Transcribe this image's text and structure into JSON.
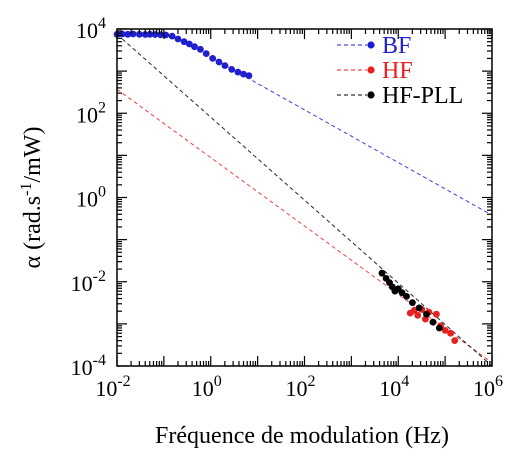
{
  "chart_data": {
    "type": "scatter",
    "title": "",
    "xlabel": "Fréquence de modulation (Hz)",
    "ylabel": "α (rad.s⁻¹/mW)",
    "x_scale": "log",
    "y_scale": "log",
    "xlim": [
      0.01,
      1000000
    ],
    "ylim": [
      0.0001,
      10000
    ],
    "x_ticks": [
      {
        "value": 0.01,
        "base": "10",
        "exp": "-2"
      },
      {
        "value": 1,
        "base": "10",
        "exp": "0"
      },
      {
        "value": 100,
        "base": "10",
        "exp": "2"
      },
      {
        "value": 10000,
        "base": "10",
        "exp": "4"
      },
      {
        "value": 1000000,
        "base": "10",
        "exp": "6"
      }
    ],
    "y_ticks": [
      {
        "value": 0.0001,
        "base": "10",
        "exp": "-4"
      },
      {
        "value": 0.01,
        "base": "10",
        "exp": "-2"
      },
      {
        "value": 1,
        "base": "10",
        "exp": "0"
      },
      {
        "value": 100,
        "base": "10",
        "exp": "2"
      },
      {
        "value": 10000,
        "base": "10",
        "exp": "4"
      }
    ],
    "grid": false,
    "legend_position": "top-right",
    "series": [
      {
        "name": "BF",
        "color": "#1f1fd0",
        "points": [
          [
            0.01,
            7500
          ],
          [
            0.013,
            7600
          ],
          [
            0.017,
            7500
          ],
          [
            0.022,
            7600
          ],
          [
            0.03,
            7500
          ],
          [
            0.04,
            7400
          ],
          [
            0.05,
            7500
          ],
          [
            0.065,
            7400
          ],
          [
            0.085,
            7300
          ],
          [
            0.11,
            7200
          ],
          [
            0.15,
            6800
          ],
          [
            0.2,
            5800
          ],
          [
            0.27,
            5000
          ],
          [
            0.35,
            4400
          ],
          [
            0.45,
            3800
          ],
          [
            0.6,
            3300
          ],
          [
            0.8,
            2600
          ],
          [
            1.1,
            2000
          ],
          [
            1.5,
            1650
          ],
          [
            2.0,
            1350
          ],
          [
            2.8,
            1100
          ],
          [
            3.8,
            950
          ],
          [
            5.0,
            850
          ],
          [
            6.5,
            780
          ]
        ],
        "fit_line": [
          [
            0.01,
            7600
          ],
          [
            0.15,
            7000
          ],
          [
            1000000,
            0.38
          ]
        ]
      },
      {
        "name": "HF",
        "color": "#e82020",
        "points": [
          [
            18000,
            0.0018
          ],
          [
            22000,
            0.0021
          ],
          [
            26000,
            0.0016
          ],
          [
            32000,
            0.0022
          ],
          [
            38000,
            0.0013
          ],
          [
            45000,
            0.0019
          ],
          [
            55000,
            0.0011
          ],
          [
            65000,
            0.0017
          ],
          [
            80000,
            0.0009
          ],
          [
            100000,
            0.0007
          ],
          [
            130000,
            0.0006
          ],
          [
            160000,
            0.0004
          ]
        ],
        "fit_line": [
          [
            0.01,
            370
          ],
          [
            1000000,
            0.00012
          ]
        ]
      },
      {
        "name": "HF-PLL",
        "color": "#000000",
        "points": [
          [
            4500,
            0.016
          ],
          [
            5500,
            0.012
          ],
          [
            6500,
            0.0095
          ],
          [
            7500,
            0.0075
          ],
          [
            8500,
            0.006
          ],
          [
            10000,
            0.0068
          ],
          [
            12000,
            0.0055
          ],
          [
            15000,
            0.0045
          ],
          [
            20000,
            0.0032
          ],
          [
            28000,
            0.0024
          ],
          [
            40000,
            0.0017
          ],
          [
            55000,
            0.0011
          ],
          [
            75000,
            0.0008
          ]
        ],
        "fit_line": [
          [
            0.01,
            7500
          ],
          [
            1000000,
            0.0001
          ]
        ]
      }
    ]
  }
}
